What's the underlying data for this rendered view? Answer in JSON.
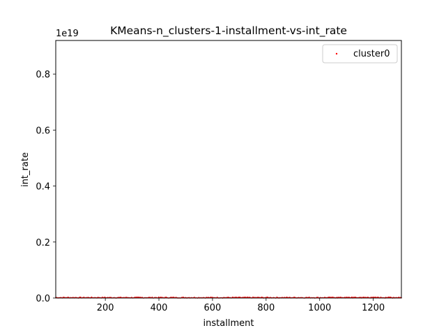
{
  "chart_data": {
    "type": "scatter",
    "title": "KMeans-n_clusters-1-installment-vs-int_rate",
    "xlabel": "installment",
    "ylabel": "int_rate",
    "xlim": [
      15,
      1305
    ],
    "ylim": [
      0,
      9.2e+18
    ],
    "x_ticks": [
      200,
      400,
      600,
      800,
      1000,
      1200
    ],
    "x_tick_labels": [
      "200",
      "400",
      "600",
      "800",
      "1000",
      "1200"
    ],
    "y_ticks": [
      0,
      2e+18,
      4e+18,
      6e+18,
      8e+18
    ],
    "y_tick_labels": [
      "0.0",
      "0.2",
      "0.4",
      "0.6",
      "0.8"
    ],
    "y_offset_label": "1e19",
    "grid": false,
    "legend_position": "top-right",
    "series": [
      {
        "name": "cluster0",
        "color": "#ff0000",
        "marker": "dot",
        "x_range": [
          15,
          1305
        ],
        "y_approx": 0
      }
    ]
  }
}
